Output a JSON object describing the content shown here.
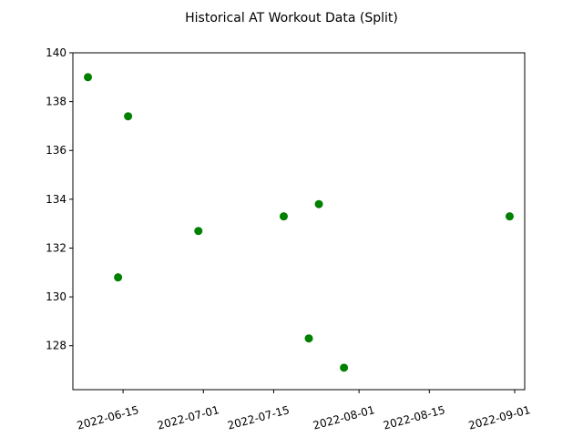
{
  "chart_data": {
    "type": "scatter",
    "title": "Historical AT Workout Data (Split)",
    "xlabel": "",
    "ylabel": "",
    "x_ticks": [
      "2022-06-15",
      "2022-07-01",
      "2022-07-15",
      "2022-08-01",
      "2022-08-15",
      "2022-09-01"
    ],
    "y_ticks": [
      "128",
      "130",
      "132",
      "134",
      "136",
      "138",
      "140"
    ],
    "xlim": [
      "2022-06-05",
      "2022-09-03"
    ],
    "ylim": [
      126.2,
      140
    ],
    "grid": false,
    "color": "#008000",
    "points": [
      {
        "x": "2022-06-08",
        "y": 139.0
      },
      {
        "x": "2022-06-14",
        "y": 130.8
      },
      {
        "x": "2022-06-16",
        "y": 137.4
      },
      {
        "x": "2022-06-30",
        "y": 132.7
      },
      {
        "x": "2022-07-17",
        "y": 133.3
      },
      {
        "x": "2022-07-22",
        "y": 128.3
      },
      {
        "x": "2022-07-24",
        "y": 133.8
      },
      {
        "x": "2022-07-29",
        "y": 127.1
      },
      {
        "x": "2022-08-31",
        "y": 133.3
      }
    ]
  }
}
